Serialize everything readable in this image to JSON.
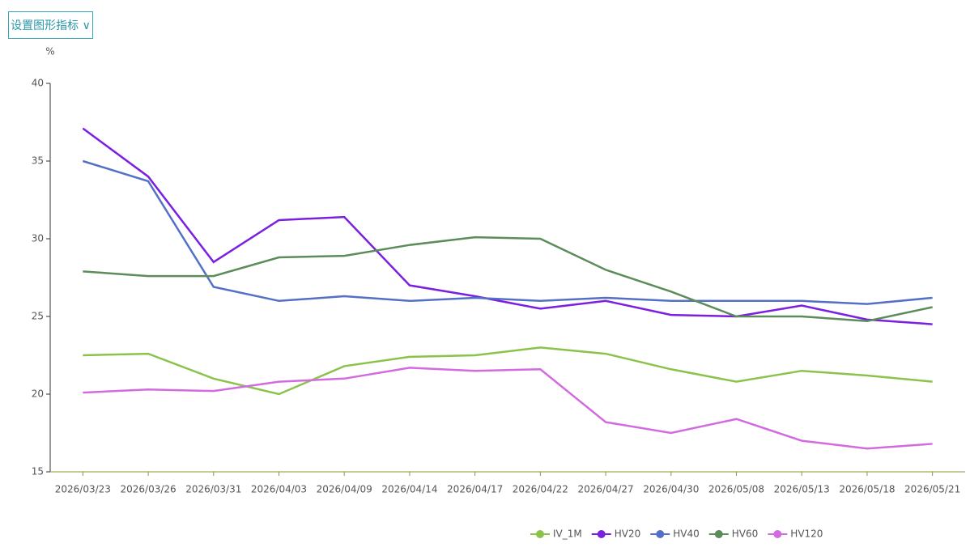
{
  "button": "设置图形指标 ∨",
  "chart_data": {
    "type": "line",
    "y_unit": "%",
    "categories": [
      "2026/03/23",
      "2026/03/26",
      "2026/03/31",
      "2026/04/03",
      "2026/04/09",
      "2026/04/14",
      "2026/04/17",
      "2026/04/22",
      "2026/04/27",
      "2026/04/30",
      "2026/05/08",
      "2026/05/13",
      "2026/05/18",
      "2026/05/21"
    ],
    "ylim": [
      15,
      40
    ],
    "yticks": [
      15,
      20,
      25,
      30,
      35,
      40
    ],
    "grid": false,
    "legend": "bottom",
    "series": [
      {
        "name": "IV_1M",
        "color": "#8bc34a",
        "values": [
          22.5,
          22.6,
          21,
          20,
          21.8,
          22.4,
          22.5,
          23,
          22.6,
          21.6,
          20.8,
          21.5,
          21.2,
          20.8
        ]
      },
      {
        "name": "HV20",
        "color": "#7b1fe0",
        "values": [
          37.1,
          34,
          28.5,
          31.2,
          31.4,
          27,
          26.3,
          25.5,
          26,
          25.1,
          25,
          25.7,
          24.8,
          24.5
        ]
      },
      {
        "name": "HV40",
        "color": "#5470c6",
        "values": [
          35,
          33.7,
          26.9,
          26,
          26.3,
          26,
          26.2,
          26,
          26.2,
          26,
          26,
          26,
          25.8,
          26.2
        ]
      },
      {
        "name": "HV60",
        "color": "#5b8c5a",
        "values": [
          27.9,
          27.6,
          27.6,
          28.8,
          28.9,
          29.6,
          30.1,
          30,
          28,
          26.6,
          25,
          25,
          24.7,
          25.6
        ]
      },
      {
        "name": "HV120",
        "color": "#d36be0",
        "values": [
          20.1,
          20.3,
          20.2,
          20.8,
          21,
          21.7,
          21.5,
          21.6,
          18.2,
          17.5,
          18.4,
          17,
          16.5,
          16.8
        ]
      }
    ]
  }
}
